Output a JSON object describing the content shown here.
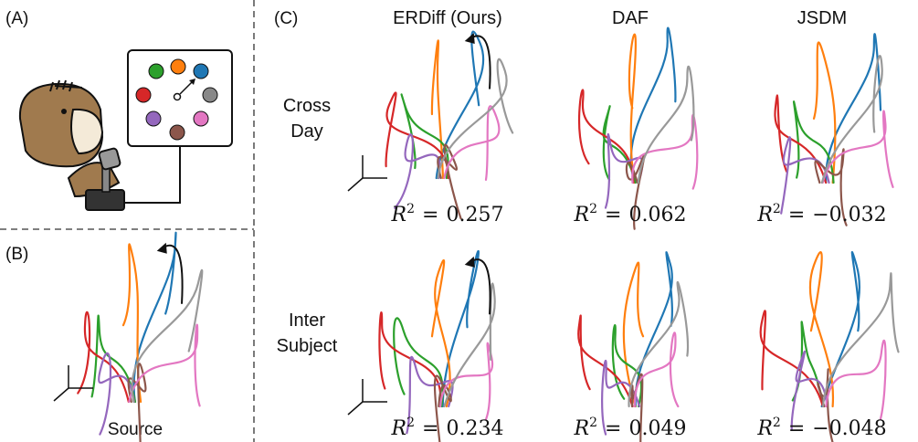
{
  "labels": {
    "a": "(A)",
    "b": "(B)",
    "c": "(C)"
  },
  "panel_b": {
    "caption": "Source"
  },
  "panel_c": {
    "columns": [
      "ERDiff (Ours)",
      "DAF",
      "JSDM"
    ],
    "rows": [
      {
        "label_lines": [
          "Cross",
          "Day"
        ],
        "scores": [
          {
            "base": "R",
            "exponent": "2",
            "relation": "=",
            "value": "0.257"
          },
          {
            "base": "R",
            "exponent": "2",
            "relation": "=",
            "value": "0.062"
          },
          {
            "base": "R",
            "exponent": "2",
            "relation": "=",
            "value": "−0.032"
          }
        ]
      },
      {
        "label_lines": [
          "Inter",
          "Subject"
        ],
        "scores": [
          {
            "base": "R",
            "exponent": "2",
            "relation": "=",
            "value": "0.234"
          },
          {
            "base": "R",
            "exponent": "2",
            "relation": "=",
            "value": "0.049"
          },
          {
            "base": "R",
            "exponent": "2",
            "relation": "=",
            "value": "−0.048"
          }
        ]
      }
    ]
  }
}
